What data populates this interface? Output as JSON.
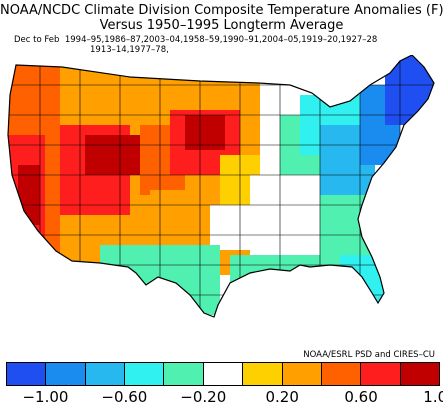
{
  "title_line1": "NOAA/NCDC Climate Division Composite Temperature Anomalies (F)",
  "title_line2": "Versus 1950–1995 Longterm Average",
  "season_label": "Dec to Feb",
  "years_line1": "1994–95,1986–87,2003–04,1958–59,1990–91,2004–05,1919–20,1927–28",
  "years_line2": "1913–14,1977–78,",
  "credit": "NOAA/ESRL PSD and CIRES–CU",
  "legend": {
    "colors": [
      "#1f4ff0",
      "#1a8cf0",
      "#28b8f0",
      "#30f0f0",
      "#50f0b0",
      "#ffffff",
      "#ffd000",
      "#ffa000",
      "#ff6000",
      "#ff1e1e",
      "#c00000"
    ],
    "tick_labels": [
      "−1.00",
      "−0.60",
      "−0.20",
      "0.20",
      "0.60",
      "1.00"
    ]
  }
}
